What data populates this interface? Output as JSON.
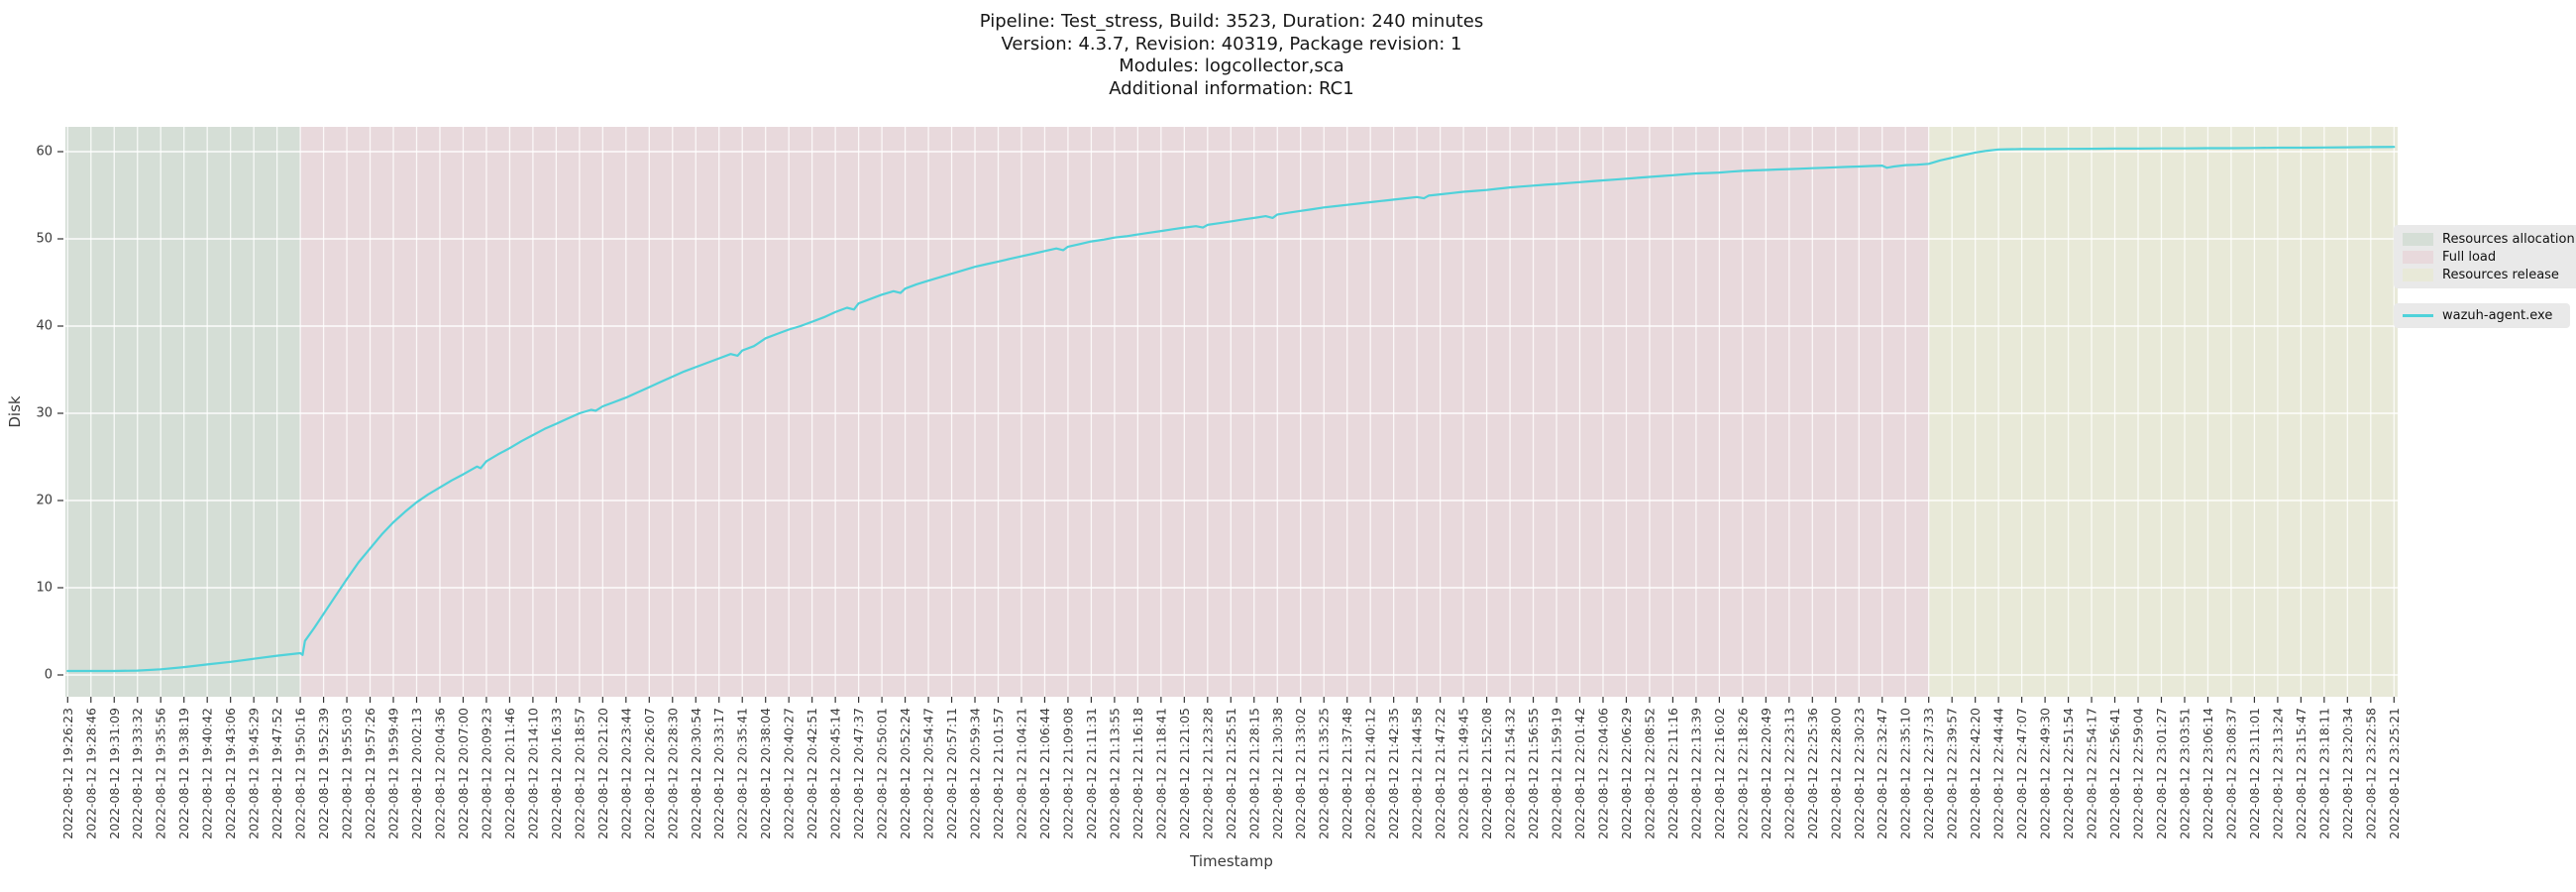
{
  "title": {
    "line1": "Pipeline: Test_stress, Build: 3523, Duration: 240 minutes",
    "line2": "Version: 4.3.7, Revision: 40319, Package revision: 1",
    "line3": "Modules: logcollector,sca",
    "line4": "Additional information: RC1"
  },
  "legend": {
    "patches": [
      {
        "label": "Resources allocation",
        "color": "#d5ded6"
      },
      {
        "label": "Full load",
        "color": "#e8d9dc"
      },
      {
        "label": "Resources release",
        "color": "#e8e9d8"
      }
    ],
    "lines": [
      {
        "label": "wazuh-agent.exe",
        "color": "#4fd2da"
      }
    ]
  },
  "chart_data": {
    "type": "line",
    "title": "Pipeline: Test_stress, Build: 3523, Duration: 240 minutes | Version: 4.3.7, Revision: 40319, Package revision: 1 | Modules: logcollector,sca | Additional information: RC1",
    "xlabel": "Timestamp",
    "ylabel": "Disk",
    "ylim": [
      -2.5,
      62.8
    ],
    "yticks": [
      0,
      10,
      20,
      30,
      40,
      50,
      60
    ],
    "grid": true,
    "legend_position": "right",
    "x_encoding": "points use fractional index into x_tick_labels",
    "x_tick_labels": [
      "2022-08-12 19:26:23",
      "2022-08-12 19:28:46",
      "2022-08-12 19:31:09",
      "2022-08-12 19:33:32",
      "2022-08-12 19:35:56",
      "2022-08-12 19:38:19",
      "2022-08-12 19:40:42",
      "2022-08-12 19:43:06",
      "2022-08-12 19:45:29",
      "2022-08-12 19:47:52",
      "2022-08-12 19:50:16",
      "2022-08-12 19:52:39",
      "2022-08-12 19:55:03",
      "2022-08-12 19:57:26",
      "2022-08-12 19:59:49",
      "2022-08-12 20:02:13",
      "2022-08-12 20:04:36",
      "2022-08-12 20:07:00",
      "2022-08-12 20:09:23",
      "2022-08-12 20:11:46",
      "2022-08-12 20:14:10",
      "2022-08-12 20:16:33",
      "2022-08-12 20:18:57",
      "2022-08-12 20:21:20",
      "2022-08-12 20:23:44",
      "2022-08-12 20:26:07",
      "2022-08-12 20:28:30",
      "2022-08-12 20:30:54",
      "2022-08-12 20:33:17",
      "2022-08-12 20:35:41",
      "2022-08-12 20:38:04",
      "2022-08-12 20:40:27",
      "2022-08-12 20:42:51",
      "2022-08-12 20:45:14",
      "2022-08-12 20:47:37",
      "2022-08-12 20:50:01",
      "2022-08-12 20:52:24",
      "2022-08-12 20:54:47",
      "2022-08-12 20:57:11",
      "2022-08-12 20:59:34",
      "2022-08-12 21:01:57",
      "2022-08-12 21:04:21",
      "2022-08-12 21:06:44",
      "2022-08-12 21:09:08",
      "2022-08-12 21:11:31",
      "2022-08-12 21:13:55",
      "2022-08-12 21:16:18",
      "2022-08-12 21:18:41",
      "2022-08-12 21:21:05",
      "2022-08-12 21:23:28",
      "2022-08-12 21:25:51",
      "2022-08-12 21:28:15",
      "2022-08-12 21:30:38",
      "2022-08-12 21:33:02",
      "2022-08-12 21:35:25",
      "2022-08-12 21:37:48",
      "2022-08-12 21:40:12",
      "2022-08-12 21:42:35",
      "2022-08-12 21:44:58",
      "2022-08-12 21:47:22",
      "2022-08-12 21:49:45",
      "2022-08-12 21:52:08",
      "2022-08-12 21:54:32",
      "2022-08-12 21:56:55",
      "2022-08-12 21:59:19",
      "2022-08-12 22:01:42",
      "2022-08-12 22:04:06",
      "2022-08-12 22:06:29",
      "2022-08-12 22:08:52",
      "2022-08-12 22:11:16",
      "2022-08-12 22:13:39",
      "2022-08-12 22:16:02",
      "2022-08-12 22:18:26",
      "2022-08-12 22:20:49",
      "2022-08-12 22:23:13",
      "2022-08-12 22:25:36",
      "2022-08-12 22:28:00",
      "2022-08-12 22:30:23",
      "2022-08-12 22:32:47",
      "2022-08-12 22:35:10",
      "2022-08-12 22:37:33",
      "2022-08-12 22:39:57",
      "2022-08-12 22:42:20",
      "2022-08-12 22:44:44",
      "2022-08-12 22:47:07",
      "2022-08-12 22:49:30",
      "2022-08-12 22:51:54",
      "2022-08-12 22:54:17",
      "2022-08-12 22:56:41",
      "2022-08-12 22:59:04",
      "2022-08-12 23:01:27",
      "2022-08-12 23:03:51",
      "2022-08-12 23:06:14",
      "2022-08-12 23:08:37",
      "2022-08-12 23:11:01",
      "2022-08-12 23:13:24",
      "2022-08-12 23:15:47",
      "2022-08-12 23:18:11",
      "2022-08-12 23:20:34",
      "2022-08-12 23:22:58",
      "2022-08-12 23:25:21"
    ],
    "regions": [
      {
        "name": "Resources allocation",
        "start_label": "2022-08-12 19:26:23",
        "end_label": "2022-08-12 19:50:16",
        "color": "#d5ded6"
      },
      {
        "name": "Full load",
        "start_label": "2022-08-12 19:50:16",
        "end_label": "2022-08-12 22:37:33",
        "color": "#e8d9dc"
      },
      {
        "name": "Resources release",
        "start_label": "2022-08-12 22:37:33",
        "end_label": "2022-08-12 23:25:21",
        "color": "#e8e9d8"
      }
    ],
    "series": [
      {
        "name": "wazuh-agent.exe",
        "color": "#4fd2da",
        "points": [
          [
            0,
            0.45
          ],
          [
            1,
            0.45
          ],
          [
            2,
            0.45
          ],
          [
            3,
            0.5
          ],
          [
            4,
            0.65
          ],
          [
            5,
            0.9
          ],
          [
            6,
            1.2
          ],
          [
            7,
            1.5
          ],
          [
            8,
            1.85
          ],
          [
            9,
            2.2
          ],
          [
            10,
            2.5
          ],
          [
            10.1,
            2.3
          ],
          [
            10.2,
            3.9
          ],
          [
            10.6,
            5.4
          ],
          [
            11,
            7.0
          ],
          [
            11.5,
            9.0
          ],
          [
            12,
            11.0
          ],
          [
            12.5,
            12.9
          ],
          [
            13,
            14.5
          ],
          [
            13.5,
            16.1
          ],
          [
            14,
            17.5
          ],
          [
            14.5,
            18.7
          ],
          [
            15,
            19.8
          ],
          [
            15.5,
            20.7
          ],
          [
            16,
            21.5
          ],
          [
            16.5,
            22.3
          ],
          [
            17,
            23.0
          ],
          [
            17.6,
            23.9
          ],
          [
            17.75,
            23.7
          ],
          [
            18,
            24.5
          ],
          [
            18.5,
            25.3
          ],
          [
            19,
            26.0
          ],
          [
            19.5,
            26.8
          ],
          [
            20,
            27.5
          ],
          [
            20.5,
            28.2
          ],
          [
            21,
            28.8
          ],
          [
            21.5,
            29.4
          ],
          [
            22,
            30.0
          ],
          [
            22.5,
            30.4
          ],
          [
            22.7,
            30.3
          ],
          [
            23,
            30.8
          ],
          [
            23.5,
            31.3
          ],
          [
            24,
            31.8
          ],
          [
            24.5,
            32.4
          ],
          [
            25,
            33.0
          ],
          [
            25.5,
            33.6
          ],
          [
            26,
            34.2
          ],
          [
            26.5,
            34.8
          ],
          [
            27,
            35.3
          ],
          [
            27.5,
            35.8
          ],
          [
            28,
            36.3
          ],
          [
            28.5,
            36.8
          ],
          [
            28.8,
            36.6
          ],
          [
            29,
            37.2
          ],
          [
            29.5,
            37.7
          ],
          [
            30,
            38.6
          ],
          [
            30.5,
            39.1
          ],
          [
            31,
            39.6
          ],
          [
            31.5,
            40.0
          ],
          [
            32,
            40.5
          ],
          [
            32.5,
            41.0
          ],
          [
            33,
            41.6
          ],
          [
            33.5,
            42.1
          ],
          [
            33.8,
            41.9
          ],
          [
            34,
            42.6
          ],
          [
            34.5,
            43.1
          ],
          [
            35,
            43.6
          ],
          [
            35.5,
            44.0
          ],
          [
            35.8,
            43.8
          ],
          [
            36,
            44.3
          ],
          [
            36.5,
            44.8
          ],
          [
            37,
            45.2
          ],
          [
            37.5,
            45.6
          ],
          [
            38,
            46.0
          ],
          [
            38.5,
            46.4
          ],
          [
            39,
            46.8
          ],
          [
            39.5,
            47.1
          ],
          [
            40,
            47.4
          ],
          [
            40.5,
            47.7
          ],
          [
            41,
            48.0
          ],
          [
            41.5,
            48.3
          ],
          [
            42,
            48.6
          ],
          [
            42.5,
            48.9
          ],
          [
            42.8,
            48.7
          ],
          [
            43,
            49.1
          ],
          [
            43.5,
            49.4
          ],
          [
            44,
            49.7
          ],
          [
            44.5,
            49.9
          ],
          [
            45,
            50.15
          ],
          [
            45.5,
            50.3
          ],
          [
            46,
            50.5
          ],
          [
            46.5,
            50.7
          ],
          [
            47,
            50.9
          ],
          [
            47.5,
            51.1
          ],
          [
            48,
            51.3
          ],
          [
            48.5,
            51.45
          ],
          [
            48.8,
            51.3
          ],
          [
            49,
            51.6
          ],
          [
            49.5,
            51.8
          ],
          [
            50,
            52.0
          ],
          [
            50.5,
            52.2
          ],
          [
            51,
            52.4
          ],
          [
            51.5,
            52.6
          ],
          [
            51.8,
            52.4
          ],
          [
            52,
            52.8
          ],
          [
            52.5,
            53.0
          ],
          [
            53,
            53.2
          ],
          [
            53.5,
            53.4
          ],
          [
            54,
            53.6
          ],
          [
            54.5,
            53.75
          ],
          [
            55,
            53.9
          ],
          [
            55.5,
            54.05
          ],
          [
            56,
            54.2
          ],
          [
            56.5,
            54.35
          ],
          [
            57,
            54.5
          ],
          [
            57.5,
            54.65
          ],
          [
            58,
            54.8
          ],
          [
            58.3,
            54.65
          ],
          [
            58.5,
            54.95
          ],
          [
            59,
            55.1
          ],
          [
            59.5,
            55.25
          ],
          [
            60,
            55.4
          ],
          [
            60.5,
            55.5
          ],
          [
            61,
            55.6
          ],
          [
            61.5,
            55.75
          ],
          [
            62,
            55.9
          ],
          [
            62.5,
            56.0
          ],
          [
            63,
            56.1
          ],
          [
            63.5,
            56.2
          ],
          [
            64,
            56.3
          ],
          [
            64.5,
            56.4
          ],
          [
            65,
            56.5
          ],
          [
            65.5,
            56.6
          ],
          [
            66,
            56.7
          ],
          [
            66.5,
            56.8
          ],
          [
            67,
            56.9
          ],
          [
            67.5,
            57.0
          ],
          [
            68,
            57.1
          ],
          [
            68.5,
            57.2
          ],
          [
            69,
            57.3
          ],
          [
            69.5,
            57.4
          ],
          [
            70,
            57.5
          ],
          [
            70.5,
            57.55
          ],
          [
            71,
            57.6
          ],
          [
            71.5,
            57.7
          ],
          [
            72,
            57.8
          ],
          [
            72.5,
            57.85
          ],
          [
            73,
            57.9
          ],
          [
            73.5,
            57.95
          ],
          [
            74,
            58.0
          ],
          [
            74.5,
            58.05
          ],
          [
            75,
            58.1
          ],
          [
            75.5,
            58.15
          ],
          [
            76,
            58.2
          ],
          [
            76.5,
            58.25
          ],
          [
            77,
            58.3
          ],
          [
            77.5,
            58.35
          ],
          [
            78,
            58.4
          ],
          [
            78.2,
            58.15
          ],
          [
            78.5,
            58.3
          ],
          [
            79,
            58.45
          ],
          [
            79.5,
            58.5
          ],
          [
            80,
            58.6
          ],
          [
            80.5,
            59.0
          ],
          [
            81,
            59.3
          ],
          [
            81.5,
            59.6
          ],
          [
            82,
            59.9
          ],
          [
            82.5,
            60.1
          ],
          [
            83,
            60.25
          ],
          [
            84,
            60.3
          ],
          [
            85,
            60.3
          ],
          [
            86,
            60.32
          ],
          [
            87,
            60.33
          ],
          [
            88,
            60.35
          ],
          [
            89,
            60.35
          ],
          [
            90,
            60.37
          ],
          [
            91,
            60.38
          ],
          [
            92,
            60.4
          ],
          [
            93,
            60.4
          ],
          [
            94,
            60.42
          ],
          [
            95,
            60.45
          ],
          [
            96,
            60.45
          ],
          [
            97,
            60.48
          ],
          [
            98,
            60.5
          ],
          [
            99,
            60.52
          ],
          [
            100,
            60.55
          ]
        ]
      }
    ]
  }
}
